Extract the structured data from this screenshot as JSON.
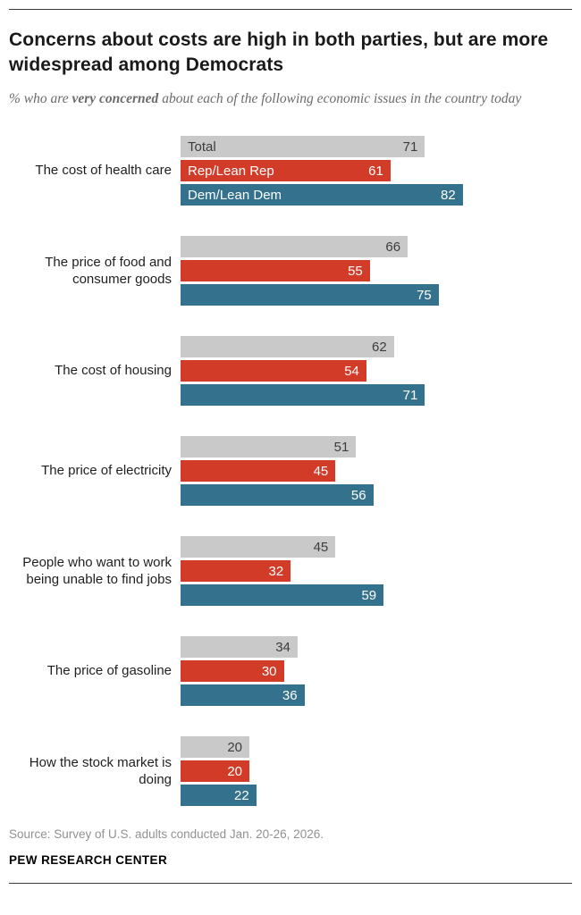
{
  "header": {
    "title": "Concerns about costs are high in both parties, but are more widespread among Democrats",
    "subtitle_prefix": "% who are ",
    "subtitle_bold": "very concerned",
    "subtitle_suffix": " about each of the following economic issues in the country today"
  },
  "chart_data": {
    "type": "bar",
    "orientation": "horizontal",
    "unit": "percent",
    "xlim": [
      0,
      100
    ],
    "grid": false,
    "legend_position": "inline-first-group",
    "series": [
      {
        "key": "total",
        "name": "Total",
        "color": "#c9c9c9",
        "label_color": "#3d3d3d"
      },
      {
        "key": "rep",
        "name": "Rep/Lean Rep",
        "color": "#d23b28",
        "label_color": "#ffffff"
      },
      {
        "key": "dem",
        "name": "Dem/Lean Dem",
        "color": "#33718c",
        "label_color": "#ffffff"
      }
    ],
    "rows": [
      {
        "category": "The cost of health care",
        "values": {
          "total": 71,
          "rep": 61,
          "dem": 82
        }
      },
      {
        "category": "The price of food and consumer goods",
        "values": {
          "total": 66,
          "rep": 55,
          "dem": 75
        }
      },
      {
        "category": "The cost of housing",
        "values": {
          "total": 62,
          "rep": 54,
          "dem": 71
        }
      },
      {
        "category": "The price of electricity",
        "values": {
          "total": 51,
          "rep": 45,
          "dem": 56
        }
      },
      {
        "category": "People who want to work being unable to find jobs",
        "values": {
          "total": 45,
          "rep": 32,
          "dem": 59
        }
      },
      {
        "category": "The price of gasoline",
        "values": {
          "total": 34,
          "rep": 30,
          "dem": 36
        }
      },
      {
        "category": "How the stock market is doing",
        "values": {
          "total": 20,
          "rep": 20,
          "dem": 22
        }
      }
    ]
  },
  "footer": {
    "source": "Source: Survey of U.S. adults conducted Jan. 20-26, 2026.",
    "org": "PEW RESEARCH CENTER"
  }
}
